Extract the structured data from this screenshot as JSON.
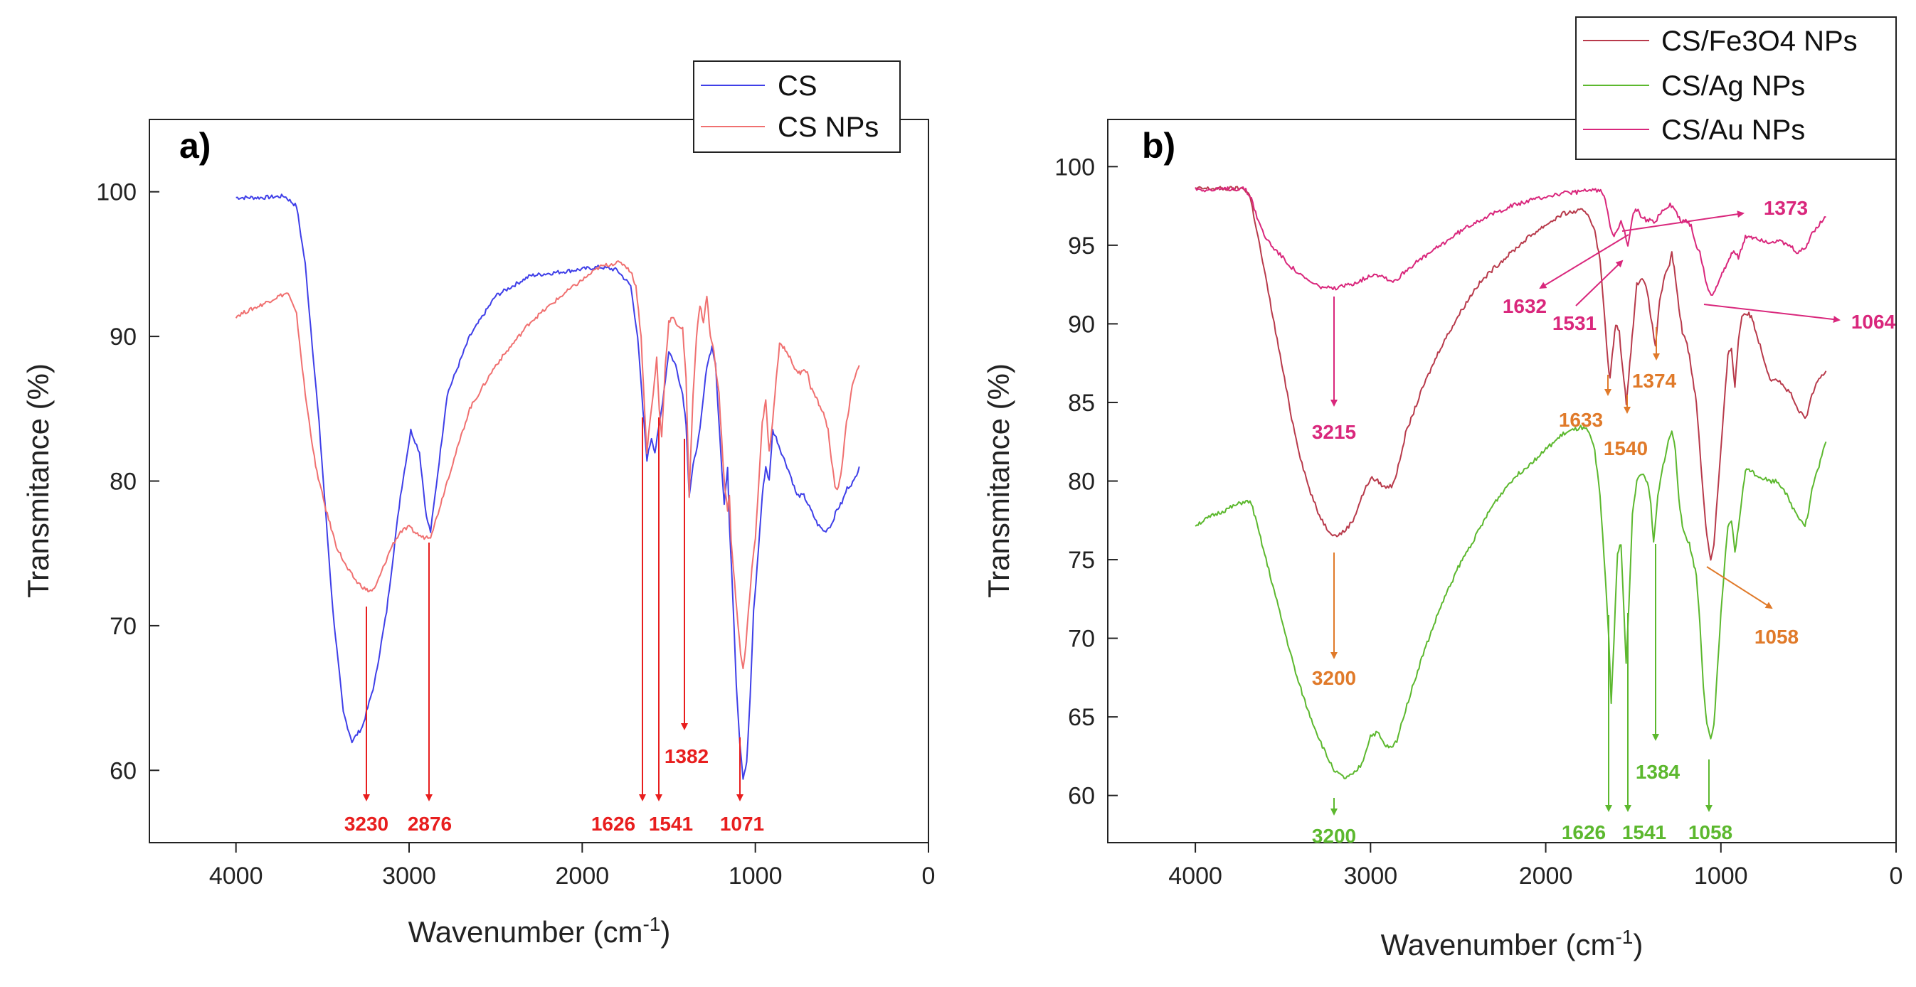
{
  "chart_data": [
    {
      "type": "line",
      "panel_label": "a)",
      "xlabel": "Wavenumber (cm",
      "xlabel_sup": "-1",
      "xlabel_close": ")",
      "ylabel": "Transmitance (%)",
      "xlim": [
        4500,
        0
      ],
      "ylim": [
        55,
        105
      ],
      "xticks": [
        4000,
        3000,
        2000,
        1000,
        0
      ],
      "yticks": [
        60,
        70,
        80,
        90,
        100
      ],
      "legend": [
        "CS",
        "CS NPs"
      ],
      "series": [
        {
          "name": "CS",
          "color": "#3f3fe8",
          "x": [
            4000,
            3850,
            3720,
            3650,
            3600,
            3520,
            3440,
            3380,
            3330,
            3270,
            3200,
            3130,
            3050,
            2990,
            2940,
            2900,
            2876,
            2850,
            2780,
            2650,
            2500,
            2300,
            2100,
            1900,
            1800,
            1720,
            1680,
            1650,
            1626,
            1600,
            1580,
            1560,
            1541,
            1520,
            1500,
            1460,
            1420,
            1400,
            1382,
            1360,
            1320,
            1280,
            1250,
            1230,
            1200,
            1180,
            1160,
            1150,
            1130,
            1110,
            1090,
            1071,
            1050,
            1030,
            1010,
            990,
            960,
            940,
            920,
            900,
            880,
            850,
            800,
            760,
            720,
            680,
            640,
            600,
            560,
            530,
            500,
            470,
            430,
            400
          ],
          "y": [
            99.6,
            99.6,
            99.7,
            99,
            95,
            84,
            71,
            64,
            62,
            63,
            66,
            71,
            79,
            83.5,
            82,
            77.5,
            76.5,
            79,
            86,
            90,
            92.8,
            94.2,
            94.5,
            94.8,
            94.6,
            93.5,
            90,
            85,
            81.5,
            83,
            82,
            83.5,
            85,
            87,
            89,
            88,
            86,
            84,
            79,
            81,
            83.5,
            88,
            89.3,
            88,
            82,
            78.5,
            81,
            77,
            72,
            66,
            62,
            59.5,
            60.5,
            65,
            71,
            74,
            79,
            81,
            80,
            83.5,
            83,
            82,
            80.5,
            79,
            79,
            78,
            77,
            76.5,
            77,
            78,
            78.5,
            79.5,
            80,
            81
          ]
        },
        {
          "name": "CS NPs",
          "color": "#f07070",
          "x": [
            4000,
            3850,
            3750,
            3700,
            3650,
            3600,
            3540,
            3480,
            3420,
            3360,
            3300,
            3250,
            3230,
            3200,
            3150,
            3100,
            3050,
            3000,
            2960,
            2920,
            2876,
            2840,
            2780,
            2650,
            2500,
            2300,
            2100,
            1900,
            1800,
            1760,
            1720,
            1690,
            1660,
            1640,
            1626,
            1610,
            1590,
            1570,
            1555,
            1541,
            1520,
            1500,
            1480,
            1450,
            1420,
            1400,
            1382,
            1360,
            1340,
            1320,
            1300,
            1280,
            1260,
            1240,
            1210,
            1180,
            1160,
            1150,
            1140,
            1120,
            1100,
            1085,
            1071,
            1055,
            1040,
            1020,
            1000,
            980,
            960,
            940,
            920,
            900,
            880,
            860,
            840,
            820,
            800,
            780,
            760,
            740,
            720,
            700,
            680,
            660,
            640,
            620,
            600,
            580,
            560,
            540,
            520,
            500,
            480,
            460,
            440,
            420,
            400
          ],
          "y": [
            91.4,
            92.2,
            92.8,
            93,
            91.5,
            86,
            81,
            78,
            75.5,
            74,
            73,
            72.5,
            72.4,
            72.5,
            74,
            75.5,
            76.5,
            76.8,
            76.4,
            76.1,
            76.2,
            77.5,
            80,
            85,
            88,
            91,
            93,
            94.8,
            95.1,
            95,
            94.5,
            93.5,
            90,
            85,
            82,
            84,
            86,
            88.5,
            85,
            83,
            88,
            91,
            91.3,
            90.8,
            90.5,
            87,
            79,
            86,
            90,
            92.2,
            91,
            92.8,
            90,
            89,
            86,
            80,
            78,
            79,
            76,
            73,
            70,
            68,
            67,
            68.5,
            71,
            74,
            76,
            80,
            84,
            85.5,
            82,
            84,
            87,
            89.5,
            89.3,
            89,
            88.5,
            88,
            87.5,
            87.5,
            87.8,
            87.5,
            86.5,
            86,
            85.5,
            85,
            84.5,
            83.5,
            81.5,
            79.5,
            79.5,
            81,
            83.5,
            85,
            86.5,
            87.5,
            88
          ]
        }
      ],
      "annotations": [
        {
          "label": "3230",
          "x": 3230
        },
        {
          "label": "2876",
          "x": 2876
        },
        {
          "label": "1626",
          "x": 1626
        },
        {
          "label": "1541",
          "x": 1541
        },
        {
          "label": "1382",
          "x": 1382
        },
        {
          "label": "1071",
          "x": 1071
        }
      ],
      "annotation_color": "#e81e1e"
    },
    {
      "type": "line",
      "panel_label": "b)",
      "xlabel": "Wavenumber (cm",
      "xlabel_sup": "-1",
      "xlabel_close": ")",
      "ylabel": "Transmitance (%)",
      "xlim": [
        4500,
        0
      ],
      "ylim": [
        57,
        103
      ],
      "xticks": [
        4000,
        3000,
        2000,
        1000,
        0
      ],
      "yticks": [
        60,
        65,
        70,
        75,
        80,
        85,
        90,
        95,
        100
      ],
      "legend": [
        "CS/Fe3O4 NPs",
        "CS/Ag NPs",
        "CS/Au NPs"
      ],
      "series": [
        {
          "name": "CS/Fe3O4 NPs",
          "color": "#b83a4b",
          "x": [
            4000,
            3850,
            3720,
            3690,
            3650,
            3600,
            3550,
            3500,
            3450,
            3400,
            3350,
            3300,
            3250,
            3200,
            3150,
            3100,
            3050,
            3000,
            2960,
            2920,
            2880,
            2850,
            2800,
            2700,
            2600,
            2500,
            2400,
            2300,
            2200,
            2100,
            2000,
            1900,
            1800,
            1760,
            1720,
            1690,
            1660,
            1645,
            1633,
            1620,
            1600,
            1580,
            1560,
            1540,
            1520,
            1500,
            1480,
            1450,
            1420,
            1400,
            1374,
            1350,
            1320,
            1300,
            1280,
            1260,
            1240,
            1220,
            1200,
            1180,
            1160,
            1140,
            1120,
            1100,
            1080,
            1058,
            1040,
            1020,
            1000,
            980,
            960,
            940,
            920,
            900,
            880,
            860,
            840,
            820,
            800,
            760,
            720,
            680,
            640,
            600,
            560,
            520,
            500,
            480,
            440,
            400
          ],
          "y": [
            98.6,
            98.6,
            98.6,
            98.2,
            96,
            93,
            90,
            87,
            84,
            81.5,
            79.5,
            78,
            77,
            76.5,
            76.8,
            77.5,
            79,
            80.2,
            80,
            79.6,
            79.7,
            80.5,
            83,
            86,
            88.5,
            90.5,
            92.3,
            93.5,
            94.5,
            95.5,
            96.3,
            97,
            97.2,
            97,
            96,
            94,
            90,
            87.5,
            86.5,
            88,
            90,
            89.5,
            87,
            85,
            87.5,
            90,
            92.5,
            93,
            92,
            90.5,
            88.5,
            91.5,
            93,
            93.5,
            94.5,
            93,
            91,
            89.5,
            89,
            88,
            86.5,
            85,
            82,
            79,
            76.5,
            75,
            76,
            79,
            82,
            85,
            88,
            88.5,
            86,
            89,
            90.5,
            90.7,
            90.6,
            90.3,
            89.5,
            88,
            86.5,
            86.5,
            86,
            85.5,
            84.5,
            84,
            84.5,
            85.5,
            86.5,
            87
          ]
        },
        {
          "name": "CS/Ag NPs",
          "color": "#5cb82e",
          "x": [
            4000,
            3900,
            3800,
            3720,
            3680,
            3620,
            3550,
            3480,
            3420,
            3360,
            3300,
            3250,
            3200,
            3150,
            3100,
            3050,
            3000,
            2960,
            2920,
            2880,
            2850,
            2800,
            2700,
            2600,
            2500,
            2400,
            2300,
            2200,
            2100,
            2000,
            1900,
            1800,
            1760,
            1720,
            1690,
            1660,
            1640,
            1626,
            1610,
            1590,
            1570,
            1555,
            1541,
            1525,
            1505,
            1480,
            1450,
            1420,
            1400,
            1384,
            1360,
            1330,
            1300,
            1280,
            1260,
            1240,
            1220,
            1200,
            1180,
            1160,
            1140,
            1120,
            1100,
            1080,
            1058,
            1040,
            1020,
            1000,
            980,
            960,
            940,
            920,
            900,
            880,
            860,
            840,
            820,
            800,
            760,
            720,
            680,
            640,
            600,
            560,
            520,
            500,
            480,
            440,
            400
          ],
          "y": [
            77.2,
            77.8,
            78.3,
            78.7,
            78.6,
            76,
            73,
            70,
            67.5,
            65.5,
            63.8,
            62.5,
            61.5,
            61.1,
            61.3,
            62,
            63.8,
            64,
            63.2,
            63,
            63.5,
            65.5,
            69,
            72,
            74.5,
            76.5,
            78.5,
            80,
            81,
            82,
            83,
            83.4,
            83.2,
            82,
            79,
            74,
            70,
            66,
            70,
            75.5,
            76,
            72,
            68.5,
            72,
            78,
            80,
            80.5,
            80,
            78.5,
            76,
            79,
            81,
            82.5,
            83.2,
            82,
            79,
            77,
            76.5,
            76,
            75,
            74,
            71,
            67,
            64.5,
            63.5,
            64.5,
            68,
            71.5,
            74.5,
            77,
            77.5,
            75.5,
            77,
            79,
            80.6,
            80.8,
            80.6,
            80.4,
            80.2,
            80,
            80,
            79.5,
            78.5,
            77.8,
            77.2,
            78,
            79.5,
            81,
            82.5
          ]
        },
        {
          "name": "CS/Au NPs",
          "color": "#d9277c",
          "x": [
            4000,
            3900,
            3800,
            3720,
            3680,
            3640,
            3600,
            3550,
            3500,
            3450,
            3400,
            3350,
            3300,
            3250,
            3215,
            3180,
            3120,
            3050,
            2980,
            2920,
            2880,
            2840,
            2800,
            2700,
            2600,
            2500,
            2400,
            2300,
            2200,
            2100,
            2000,
            1900,
            1800,
            1740,
            1700,
            1680,
            1660,
            1632,
            1610,
            1590,
            1570,
            1550,
            1531,
            1515,
            1500,
            1480,
            1450,
            1420,
            1400,
            1373,
            1350,
            1320,
            1290,
            1260,
            1230,
            1200,
            1170,
            1140,
            1120,
            1100,
            1080,
            1064,
            1040,
            1020,
            1000,
            980,
            960,
            940,
            920,
            900,
            880,
            860,
            840,
            820,
            800,
            760,
            720,
            680,
            640,
            600,
            560,
            520,
            500,
            480,
            440,
            400
          ],
          "y": [
            98.6,
            98.5,
            98.6,
            98.6,
            98,
            96.5,
            95.5,
            94.8,
            94.2,
            93.6,
            93.1,
            92.7,
            92.4,
            92.3,
            92.2,
            92.3,
            92.5,
            92.8,
            93.2,
            93,
            92.7,
            92.9,
            93.4,
            94.2,
            95,
            95.8,
            96.5,
            97,
            97.5,
            97.8,
            98.1,
            98.3,
            98.4,
            98.5,
            98.5,
            98.4,
            98,
            96.3,
            95.5,
            96,
            96.5,
            95.8,
            95,
            96,
            97,
            97.3,
            96.8,
            96.5,
            96.6,
            96.5,
            97,
            97.3,
            97.6,
            97.2,
            96.5,
            96.6,
            96.2,
            95,
            94.5,
            93.5,
            92.5,
            91.9,
            92,
            92.5,
            93,
            93.5,
            94,
            94.5,
            94.6,
            94.2,
            94.8,
            95.5,
            95.6,
            95.5,
            95.5,
            95.3,
            95.2,
            95.3,
            95.1,
            94.9,
            94.5,
            94.8,
            95.2,
            95.8,
            96.3,
            96.8
          ]
        }
      ],
      "annotations": [
        {
          "label": "3215",
          "color": "#d9277c"
        },
        {
          "label": "1632",
          "color": "#d9277c"
        },
        {
          "label": "1373",
          "color": "#d9277c"
        },
        {
          "label": "1531",
          "color": "#d9277c"
        },
        {
          "label": "1064",
          "color": "#d9277c"
        },
        {
          "label": "1374",
          "color": "#e07a2a"
        },
        {
          "label": "1633",
          "color": "#e07a2a"
        },
        {
          "label": "1540",
          "color": "#e07a2a"
        },
        {
          "label": "3200",
          "color": "#e07a2a"
        },
        {
          "label": "1058",
          "color": "#e07a2a"
        },
        {
          "label": "3200",
          "color": "#5cb82e"
        },
        {
          "label": "1626",
          "color": "#5cb82e"
        },
        {
          "label": "1541",
          "color": "#5cb82e"
        },
        {
          "label": "1384",
          "color": "#5cb82e"
        },
        {
          "label": "1058",
          "color": "#5cb82e"
        }
      ]
    }
  ]
}
